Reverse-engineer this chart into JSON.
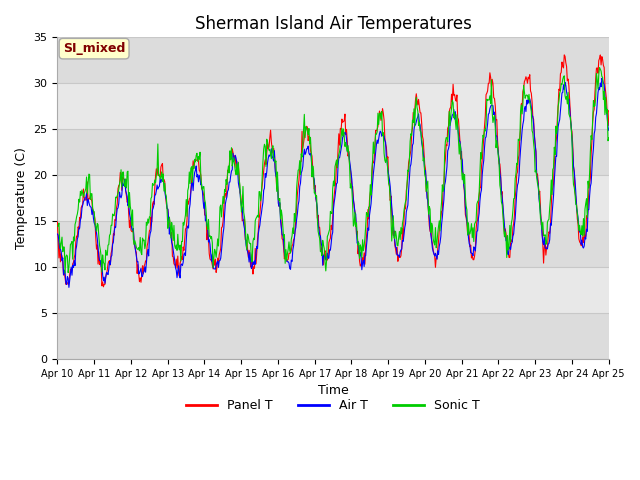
{
  "title": "Sherman Island Air Temperatures",
  "xlabel": "Time",
  "ylabel": "Temperature (C)",
  "ylim": [
    0,
    35
  ],
  "yticks": [
    0,
    5,
    10,
    15,
    20,
    25,
    30,
    35
  ],
  "band_colors": [
    "#dcdcdc",
    "#e8e8e8"
  ],
  "line_colors": [
    "#ff0000",
    "#0000ff",
    "#00cc00"
  ],
  "line_labels": [
    "Panel T",
    "Air T",
    "Sonic T"
  ],
  "legend_box_facecolor": "#ffffcc",
  "legend_box_edgecolor": "#aaaaaa",
  "legend_text_color": "#800000",
  "legend_box_label": "SI_mixed",
  "grid_color": "#c8c8c8",
  "title_fontsize": 12,
  "label_fontsize": 9,
  "tick_fontsize": 8,
  "fig_width": 6.4,
  "fig_height": 4.8,
  "dpi": 100
}
